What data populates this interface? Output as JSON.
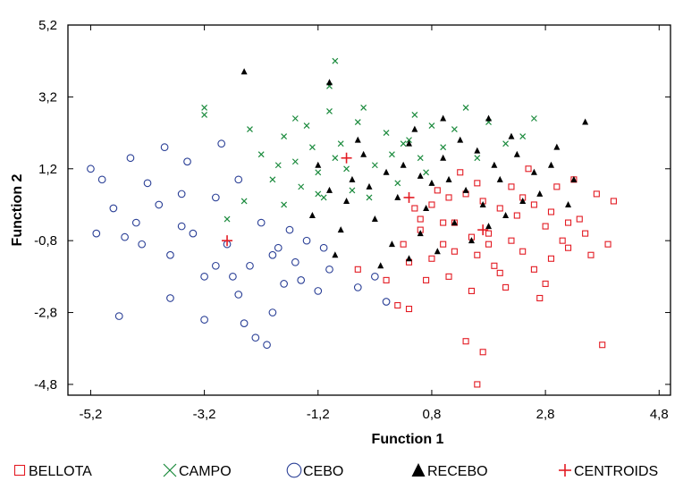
{
  "chart_data": {
    "type": "scatter",
    "title": "",
    "xlabel": "Function 1",
    "ylabel": "Function 2",
    "xlim": [
      -5.6,
      5.0
    ],
    "ylim": [
      -5.1,
      5.2
    ],
    "x_ticks": [
      "-5,2",
      "-3,2",
      "-1,2",
      "0,8",
      "2,8",
      "4,8"
    ],
    "x_tick_values": [
      -5.2,
      -3.2,
      -1.2,
      0.8,
      2.8,
      4.8
    ],
    "y_ticks": [
      "5,2",
      "3,2",
      "1,2",
      "-0,8",
      "-2,8",
      "-4,8"
    ],
    "y_tick_values": [
      5.2,
      3.2,
      1.2,
      -0.8,
      -2.8,
      -4.8
    ],
    "grid": false,
    "legend_position": "bottom",
    "series": [
      {
        "name": "BELLOTA",
        "marker": "open-square",
        "color": "#e31b23",
        "points": [
          [
            0.2,
            -2.6
          ],
          [
            0.4,
            -1.4
          ],
          [
            0.6,
            -0.5
          ],
          [
            0.8,
            0.2
          ],
          [
            1.0,
            -0.9
          ],
          [
            1.2,
            -0.3
          ],
          [
            1.4,
            0.5
          ],
          [
            1.6,
            -1.2
          ],
          [
            1.8,
            -0.6
          ],
          [
            2.0,
            0.1
          ],
          [
            2.2,
            -0.8
          ],
          [
            2.4,
            0.4
          ],
          [
            2.6,
            -1.6
          ],
          [
            2.8,
            -0.4
          ],
          [
            3.0,
            0.7
          ],
          [
            3.2,
            -1.0
          ],
          [
            3.4,
            -0.2
          ],
          [
            1.1,
            -1.8
          ],
          [
            1.5,
            -2.2
          ],
          [
            2.1,
            -2.1
          ],
          [
            2.7,
            -2.4
          ],
          [
            0.7,
            -1.9
          ],
          [
            0.3,
            -0.9
          ],
          [
            0.9,
            0.6
          ],
          [
            1.3,
            1.1
          ],
          [
            1.7,
            0.3
          ],
          [
            1.9,
            -1.5
          ],
          [
            2.3,
            -0.1
          ],
          [
            2.5,
            1.2
          ],
          [
            2.9,
            -1.3
          ],
          [
            3.3,
            0.9
          ],
          [
            3.5,
            -0.6
          ],
          [
            3.7,
            0.5
          ],
          [
            3.9,
            -0.9
          ],
          [
            4.0,
            0.3
          ],
          [
            1.4,
            -3.6
          ],
          [
            1.7,
            -3.9
          ],
          [
            3.8,
            -3.7
          ],
          [
            1.6,
            -4.8
          ],
          [
            1.0,
            -0.3
          ],
          [
            1.2,
            -1.1
          ],
          [
            1.8,
            -0.9
          ],
          [
            2.0,
            -1.7
          ],
          [
            2.2,
            0.7
          ],
          [
            2.6,
            0.2
          ],
          [
            0.5,
            0.1
          ],
          [
            0.8,
            -1.3
          ],
          [
            1.5,
            -0.7
          ],
          [
            2.4,
            -1.1
          ],
          [
            3.1,
            -0.8
          ],
          [
            2.8,
            -2.0
          ],
          [
            3.6,
            -1.2
          ],
          [
            -0.5,
            -1.6
          ],
          [
            0.0,
            -1.9
          ],
          [
            0.4,
            -2.7
          ],
          [
            1.1,
            0.4
          ],
          [
            1.6,
            0.8
          ],
          [
            2.9,
            0.0
          ],
          [
            3.2,
            -0.3
          ],
          [
            0.6,
            -0.2
          ]
        ]
      },
      {
        "name": "CAMPO",
        "marker": "x",
        "color": "#1a8a3c",
        "points": [
          [
            -3.2,
            2.7
          ],
          [
            -3.2,
            2.9
          ],
          [
            -2.2,
            1.6
          ],
          [
            -2.0,
            0.9
          ],
          [
            -1.8,
            2.1
          ],
          [
            -1.6,
            1.4
          ],
          [
            -1.4,
            2.4
          ],
          [
            -1.2,
            1.1
          ],
          [
            -1.0,
            2.8
          ],
          [
            -0.8,
            1.9
          ],
          [
            -0.6,
            0.6
          ],
          [
            -0.4,
            2.9
          ],
          [
            -0.2,
            1.3
          ],
          [
            0.0,
            2.2
          ],
          [
            0.2,
            0.8
          ],
          [
            0.4,
            2.0
          ],
          [
            0.6,
            1.5
          ],
          [
            0.8,
            2.4
          ],
          [
            1.0,
            1.8
          ],
          [
            1.2,
            2.3
          ],
          [
            -0.9,
            4.2
          ],
          [
            -1.1,
            0.4
          ],
          [
            -1.5,
            0.7
          ],
          [
            -1.9,
            1.3
          ],
          [
            -2.5,
            0.3
          ],
          [
            -2.8,
            -0.2
          ],
          [
            -1.3,
            1.8
          ],
          [
            -0.7,
            1.2
          ],
          [
            -0.3,
            0.4
          ],
          [
            0.1,
            1.6
          ],
          [
            0.5,
            2.7
          ],
          [
            1.4,
            2.9
          ],
          [
            1.6,
            1.5
          ],
          [
            2.1,
            1.9
          ],
          [
            2.4,
            2.1
          ],
          [
            -1.0,
            3.5
          ],
          [
            -1.8,
            0.2
          ],
          [
            -0.5,
            2.5
          ],
          [
            0.3,
            1.9
          ],
          [
            -1.6,
            2.6
          ],
          [
            1.8,
            2.5
          ],
          [
            -2.4,
            2.3
          ],
          [
            -1.2,
            0.5
          ],
          [
            -0.9,
            1.5
          ],
          [
            0.7,
            1.1
          ],
          [
            2.6,
            2.6
          ]
        ]
      },
      {
        "name": "CEBO",
        "marker": "open-circle",
        "color": "#2a3f96",
        "points": [
          [
            -5.2,
            1.2
          ],
          [
            -5.0,
            0.9
          ],
          [
            -4.8,
            0.1
          ],
          [
            -4.6,
            -0.7
          ],
          [
            -4.4,
            -0.3
          ],
          [
            -4.2,
            0.8
          ],
          [
            -4.0,
            0.2
          ],
          [
            -3.8,
            -1.2
          ],
          [
            -3.6,
            0.5
          ],
          [
            -3.4,
            -0.6
          ],
          [
            -3.2,
            -1.8
          ],
          [
            -3.0,
            0.4
          ],
          [
            -2.8,
            -0.9
          ],
          [
            -2.6,
            -2.3
          ],
          [
            -2.4,
            -1.5
          ],
          [
            -2.2,
            -0.3
          ],
          [
            -2.0,
            -1.2
          ],
          [
            -1.8,
            -2.0
          ],
          [
            -1.6,
            -1.4
          ],
          [
            -1.4,
            -0.8
          ],
          [
            -1.2,
            -2.2
          ],
          [
            -1.0,
            -1.6
          ],
          [
            -4.7,
            -2.9
          ],
          [
            -3.8,
            -2.4
          ],
          [
            -3.2,
            -3.0
          ],
          [
            -2.5,
            -3.1
          ],
          [
            -2.3,
            -3.5
          ],
          [
            -2.1,
            -3.7
          ],
          [
            -3.5,
            1.4
          ],
          [
            -3.9,
            1.8
          ],
          [
            -2.9,
            1.9
          ],
          [
            -4.5,
            1.5
          ],
          [
            -2.7,
            -1.8
          ],
          [
            -2.0,
            -2.8
          ],
          [
            -1.5,
            -1.9
          ],
          [
            -1.1,
            -1.0
          ],
          [
            -0.5,
            -2.1
          ],
          [
            -0.2,
            -1.8
          ],
          [
            0.0,
            -2.5
          ],
          [
            -1.7,
            -0.5
          ],
          [
            -4.3,
            -0.9
          ],
          [
            -3.6,
            -0.4
          ],
          [
            -3.0,
            -1.5
          ],
          [
            -2.6,
            0.9
          ],
          [
            -1.9,
            -1.0
          ],
          [
            -5.1,
            -0.6
          ]
        ]
      },
      {
        "name": "RECEBO",
        "marker": "filled-triangle",
        "color": "#000000",
        "points": [
          [
            -2.5,
            3.9
          ],
          [
            -1.0,
            3.6
          ],
          [
            -1.2,
            1.3
          ],
          [
            -1.0,
            0.6
          ],
          [
            -0.8,
            -0.5
          ],
          [
            -0.6,
            0.9
          ],
          [
            -0.4,
            1.6
          ],
          [
            -0.2,
            -0.2
          ],
          [
            0.0,
            1.1
          ],
          [
            0.2,
            0.4
          ],
          [
            0.4,
            1.9
          ],
          [
            0.6,
            -0.6
          ],
          [
            0.8,
            0.8
          ],
          [
            1.0,
            1.5
          ],
          [
            1.2,
            -0.3
          ],
          [
            1.4,
            0.6
          ],
          [
            1.6,
            1.7
          ],
          [
            1.8,
            -0.4
          ],
          [
            2.0,
            0.9
          ],
          [
            2.2,
            2.1
          ],
          [
            2.4,
            0.3
          ],
          [
            2.6,
            1.1
          ],
          [
            3.0,
            1.8
          ],
          [
            3.3,
            0.9
          ],
          [
            3.5,
            2.5
          ],
          [
            -0.5,
            2.0
          ],
          [
            -0.3,
            0.7
          ],
          [
            0.1,
            -0.9
          ],
          [
            0.3,
            1.3
          ],
          [
            0.5,
            2.3
          ],
          [
            0.7,
            0.1
          ],
          [
            0.9,
            -1.1
          ],
          [
            1.1,
            0.9
          ],
          [
            1.3,
            2.0
          ],
          [
            1.5,
            -0.8
          ],
          [
            1.7,
            0.2
          ],
          [
            1.9,
            1.3
          ],
          [
            2.1,
            -0.1
          ],
          [
            2.3,
            1.6
          ],
          [
            2.7,
            0.5
          ],
          [
            2.9,
            1.3
          ],
          [
            3.2,
            0.2
          ],
          [
            -0.9,
            -1.2
          ],
          [
            -0.1,
            -1.5
          ],
          [
            0.4,
            -1.3
          ],
          [
            -1.3,
            -0.1
          ],
          [
            -0.7,
            0.3
          ],
          [
            0.6,
            1.0
          ],
          [
            1.0,
            2.6
          ],
          [
            1.8,
            2.6
          ]
        ]
      },
      {
        "name": "CENTROIDS",
        "marker": "plus",
        "color": "#e31b23",
        "points": [
          [
            -2.8,
            -0.8
          ],
          [
            -0.7,
            1.5
          ],
          [
            0.4,
            0.4
          ],
          [
            1.7,
            -0.5
          ]
        ]
      }
    ]
  }
}
